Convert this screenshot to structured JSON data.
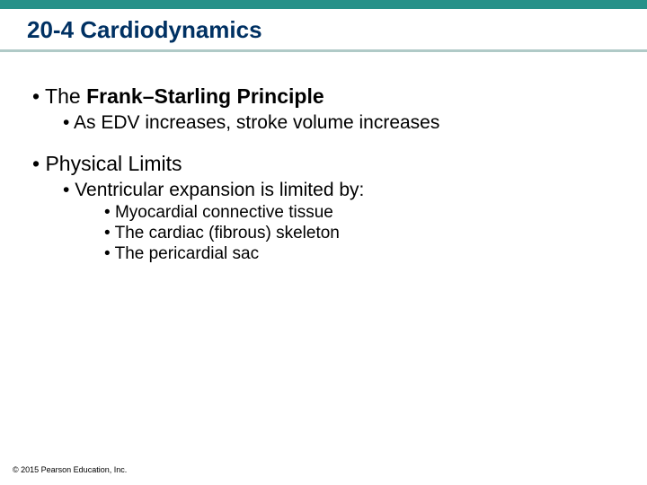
{
  "colors": {
    "top_bar": "#279189",
    "underline": "#b0cac7",
    "title_text": "#003163",
    "body_text": "#000000",
    "background": "#ffffff"
  },
  "title": "20-4 Cardiodynamics",
  "bullets": {
    "p1": {
      "prefix": "The ",
      "bold": "Frank–Starling Principle"
    },
    "p1a": "As EDV increases, stroke volume increases",
    "p2": "Physical Limits",
    "p2a": "Ventricular expansion is limited by:",
    "p2a1": "Myocardial connective tissue",
    "p2a2": "The cardiac (fibrous) skeleton",
    "p2a3": "The pericardial sac"
  },
  "footer": "© 2015 Pearson Education, Inc."
}
